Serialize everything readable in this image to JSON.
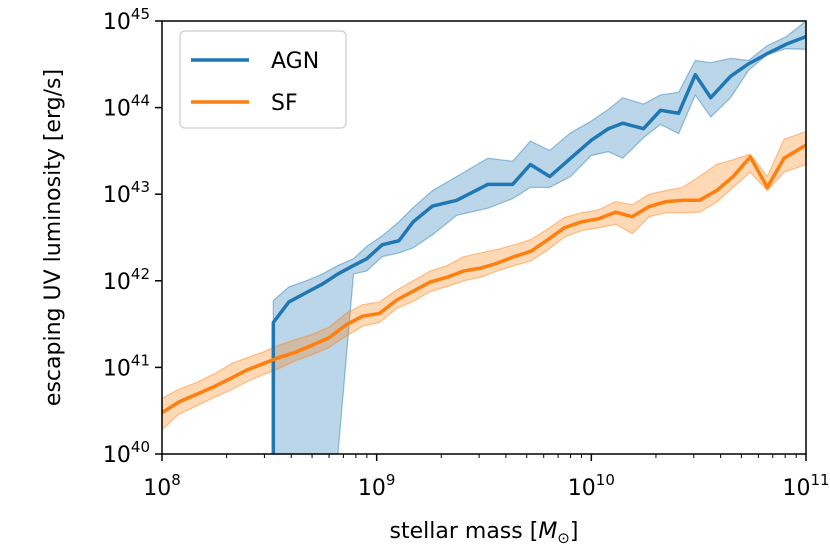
{
  "chart_data": {
    "type": "line",
    "xlabel": {
      "text": "stellar mass [",
      "symbol": "M",
      "subscript": "⊙",
      "close": "]"
    },
    "ylabel": "escaping UV luminosity [erg/s]",
    "x_scale": "log",
    "y_scale": "log",
    "xlim": [
      100000000.0,
      100000000000.0
    ],
    "ylim": [
      1e+40,
      1e+45
    ],
    "x_ticks": [
      {
        "base": "10",
        "exp": "8",
        "value": 100000000.0
      },
      {
        "base": "10",
        "exp": "9",
        "value": 1000000000.0
      },
      {
        "base": "10",
        "exp": "10",
        "value": 10000000000.0
      },
      {
        "base": "10",
        "exp": "11",
        "value": 100000000000.0
      }
    ],
    "y_ticks": [
      {
        "base": "10",
        "exp": "40",
        "value": 1e+40
      },
      {
        "base": "10",
        "exp": "41",
        "value": 1e+41
      },
      {
        "base": "10",
        "exp": "42",
        "value": 1e+42
      },
      {
        "base": "10",
        "exp": "43",
        "value": 1e+43
      },
      {
        "base": "10",
        "exp": "44",
        "value": 1e+44
      },
      {
        "base": "10",
        "exp": "45",
        "value": 1e+45
      }
    ],
    "grid": false,
    "legend_position": "top-left",
    "series": [
      {
        "name": "AGN",
        "color": "#1f77b4",
        "x": [
          330000000.0,
          330000000.0,
          390000000.0,
          470000000.0,
          560000000.0,
          660000000.0,
          780000000.0,
          900000000.0,
          1060000000.0,
          1270000000.0,
          1480000000.0,
          1820000000.0,
          2360000000.0,
          3300000000.0,
          4300000000.0,
          5200000000.0,
          6400000000.0,
          8000000000.0,
          10000000000.0,
          12000000000.0,
          14000000000.0,
          17500000000.0,
          21000000000.0,
          25500000000.0,
          30500000000.0,
          36000000000.0,
          44500000000.0,
          54000000000.0,
          66000000000.0,
          81000000000.0,
          100000000000.0
        ],
        "y": [
          1e+40,
          3.3e+41,
          5.7e+41,
          7.3e+41,
          9.2e+41,
          1.2e+42,
          1.5e+42,
          1.8e+42,
          2.6e+42,
          2.9e+42,
          4.8e+42,
          7.3e+42,
          8.5e+42,
          1.3e+43,
          1.3e+43,
          2.2e+43,
          1.6e+43,
          2.6e+43,
          4.2e+43,
          5.7e+43,
          6.6e+43,
          5.7e+43,
          9.3e+43,
          8.6e+43,
          2.4e+44,
          1.3e+44,
          2.3e+44,
          3.2e+44,
          4.2e+44,
          5.4e+44,
          6.6e+44
        ],
        "y_low": [
          1e+40,
          1e+40,
          1e+40,
          1e+40,
          1e+40,
          1e+40,
          1.2e+42,
          1.3e+42,
          1.9e+42,
          2.1e+42,
          2.4e+42,
          3.4e+42,
          5.7e+42,
          6.9e+42,
          8.9e+42,
          1.2e+43,
          1.2e+43,
          1.6e+43,
          2.8e+43,
          3.1e+43,
          2.6e+43,
          4.5e+43,
          6.4e+43,
          5e+43,
          1.4e+44,
          7.8e+43,
          1.3e+44,
          2.7e+44,
          4.1e+44,
          4.8e+44,
          4.7e+44
        ],
        "y_high": [
          1e+40,
          5.9e+41,
          8.5e+41,
          1e+42,
          1.2e+42,
          1.5e+42,
          1.8e+42,
          2.5e+42,
          3.3e+42,
          4.8e+42,
          7e+42,
          1.1e+43,
          1.6e+43,
          2.6e+43,
          2.4e+43,
          4.1e+43,
          3.2e+43,
          5.1e+43,
          7e+43,
          9.5e+43,
          1.3e+44,
          1.1e+44,
          1.4e+44,
          1.5e+44,
          3.5e+44,
          3.3e+44,
          3.7e+44,
          3.5e+44,
          5.2e+44,
          6.6e+44,
          1e+45
        ]
      },
      {
        "name": "SF",
        "color": "#ff7f0e",
        "x": [
          100000000.0,
          120000000.0,
          145000000.0,
          175000000.0,
          210000000.0,
          250000000.0,
          295000000.0,
          350000000.0,
          420000000.0,
          500000000.0,
          600000000.0,
          720000000.0,
          860000000.0,
          1030000000.0,
          1240000000.0,
          1480000000.0,
          1780000000.0,
          2130000000.0,
          2550000000.0,
          3050000000.0,
          3650000000.0,
          4370000000.0,
          5240000000.0,
          6300000000.0,
          7500000000.0,
          9000000000.0,
          10800000000.0,
          13000000000.0,
          15500000000.0,
          18600000000.0,
          22200000000.0,
          26600000000.0,
          31900000000.0,
          38300000000.0,
          45800000000.0,
          55000000000.0,
          66000000000.0,
          79000000000.0,
          100000000000.0
        ],
        "y": [
          3e+40,
          4e+40,
          4.9e+40,
          6e+40,
          7.5e+40,
          9.4e+40,
          1.1e+41,
          1.3e+41,
          1.5e+41,
          1.8e+41,
          2.2e+41,
          3.1e+41,
          3.9e+41,
          4.2e+41,
          6e+41,
          7.6e+41,
          9.7e+41,
          1.1e+42,
          1.3e+42,
          1.4e+42,
          1.6e+42,
          1.9e+42,
          2.2e+42,
          3e+42,
          4.1e+42,
          4.8e+42,
          5.2e+42,
          6.2e+42,
          5.5e+42,
          7.2e+42,
          8.2e+42,
          8.5e+42,
          8.5e+42,
          1.1e+43,
          1.6e+43,
          2.7e+43,
          1.2e+43,
          2.6e+43,
          3.7e+43
        ],
        "y_low": [
          1.9e+40,
          2.9e+40,
          3.6e+40,
          4.5e+40,
          5.5e+40,
          6.9e+40,
          8.2e+40,
          9.7e+40,
          1.2e+41,
          1.4e+41,
          1.7e+41,
          2.3e+41,
          3e+41,
          3.3e+41,
          4.8e+41,
          5.8e+41,
          7.5e+41,
          8.6e+41,
          1e+42,
          1.1e+42,
          1.3e+42,
          1.5e+42,
          1.7e+42,
          2.3e+42,
          3.2e+42,
          3.8e+42,
          4.1e+42,
          4.5e+42,
          3.5e+42,
          5.5e+42,
          6.1e+42,
          6.1e+42,
          6.2e+42,
          8.1e+42,
          1.2e+43,
          1.8e+43,
          1.1e+43,
          1.8e+43,
          2.2e+43
        ],
        "y_high": [
          4.4e+40,
          5.6e+40,
          6.7e+40,
          8.4e+40,
          1.1e+41,
          1.3e+41,
          1.5e+41,
          1.8e+41,
          2.1e+41,
          2.4e+41,
          2.9e+41,
          4.2e+41,
          5.3e+41,
          5.7e+41,
          7.8e+41,
          1e+42,
          1.3e+42,
          1.5e+42,
          1.9e+42,
          2.1e+42,
          2.3e+42,
          2.6e+42,
          3e+42,
          4e+42,
          5.4e+42,
          6.1e+42,
          6.6e+42,
          8.2e+42,
          7.5e+42,
          1e+43,
          1.1e+43,
          1.2e+43,
          1.6e+43,
          2.2e+43,
          2.5e+43,
          2.9e+43,
          1.6e+43,
          4.3e+43,
          5.3e+43
        ]
      }
    ]
  }
}
